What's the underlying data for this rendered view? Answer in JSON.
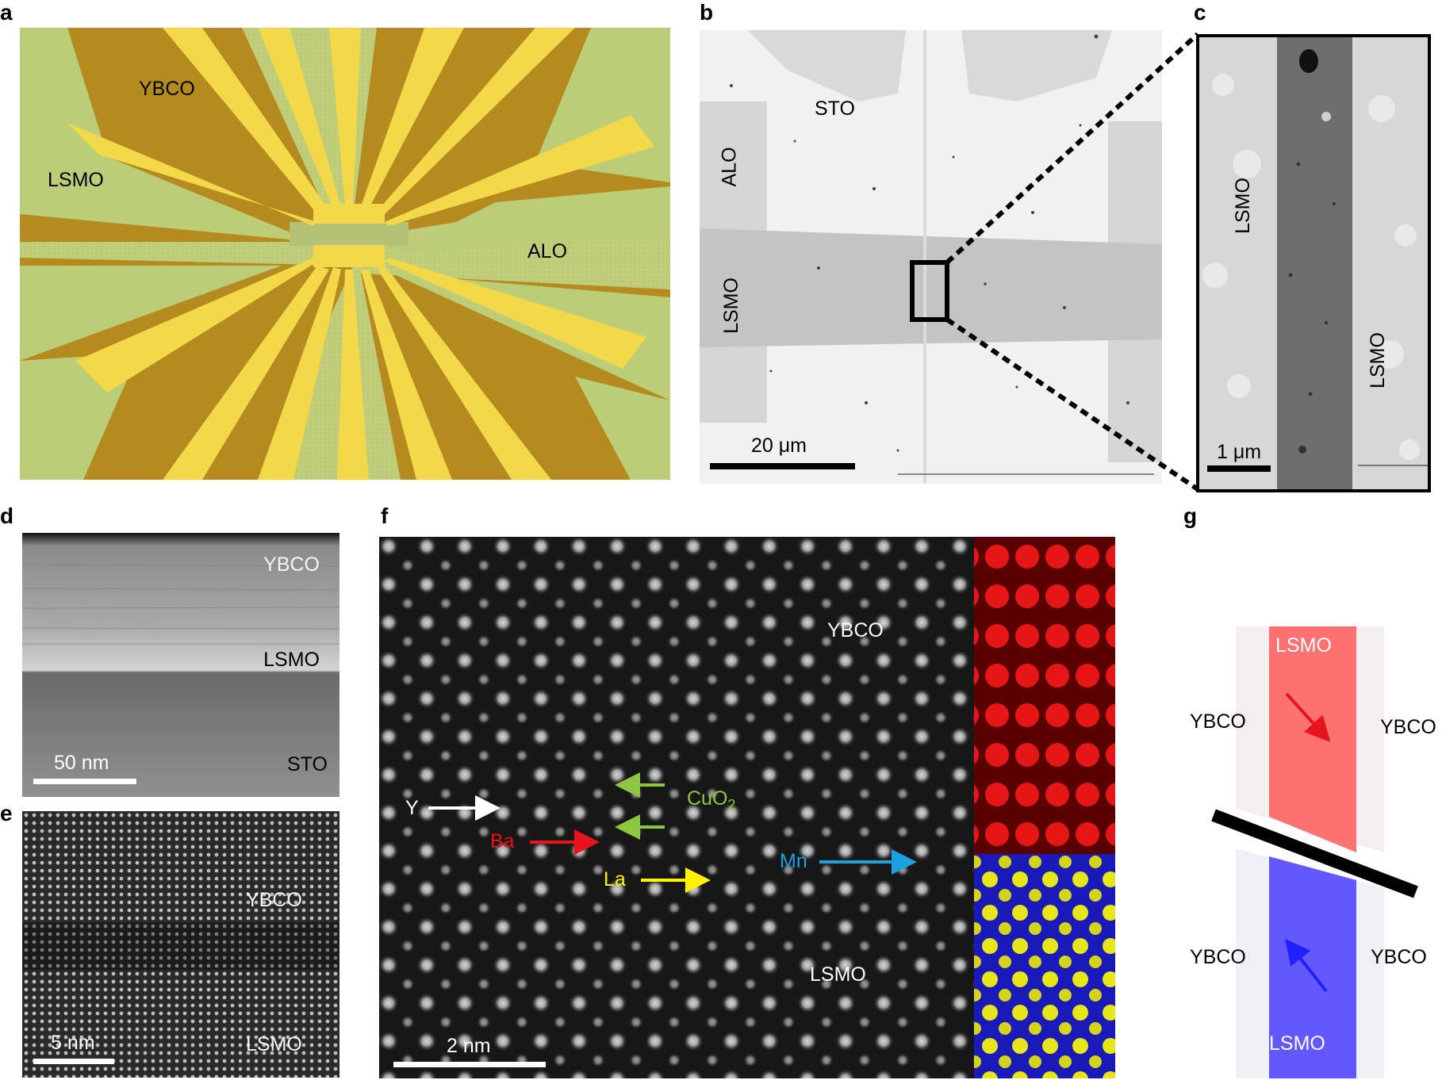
{
  "panel_letters": [
    "a",
    "b",
    "c",
    "d",
    "e",
    "f",
    "g"
  ],
  "panel_a": {
    "labels": {
      "ybco": "YBCO",
      "lsmo": "LSMO",
      "alo": "ALO"
    }
  },
  "panel_b": {
    "labels": {
      "sto": "STO",
      "alo": "ALO",
      "lsmo": "LSMO"
    },
    "scale_bar": "20 μm"
  },
  "panel_c": {
    "labels": {
      "lsmo_left": "LSMO",
      "lsmo_right": "LSMO"
    },
    "scale_bar": "1 μm"
  },
  "panel_d": {
    "labels": {
      "ybco": "YBCO",
      "lsmo": "LSMO",
      "sto": "STO"
    },
    "scale_bar": "50 nm"
  },
  "panel_e": {
    "labels": {
      "ybco": "YBCO",
      "lsmo": "LSMO"
    },
    "scale_bar": "5 nm"
  },
  "panel_f": {
    "labels": {
      "ybco": "YBCO",
      "lsmo": "LSMO"
    },
    "scale_bar": "2 nm",
    "arrows": [
      {
        "label": "Y",
        "color": "#ffffff"
      },
      {
        "label": "Ba",
        "color": "#e8141c"
      },
      {
        "label": "CuO2",
        "color": "#8ec63f"
      },
      {
        "label": "La",
        "color": "#fff200"
      },
      {
        "label": "Mn",
        "color": "#1ba1e2"
      }
    ]
  },
  "panel_g": {
    "labels": {
      "lsmo_top": "LSMO",
      "lsmo_bottom": "LSMO",
      "ybco_top_left": "YBCO",
      "ybco_top_right": "YBCO",
      "ybco_bottom_left": "YBCO",
      "ybco_bottom_right": "YBCO"
    },
    "colors": {
      "top": "#ff3b3b",
      "bottom": "#3a2cff"
    }
  }
}
